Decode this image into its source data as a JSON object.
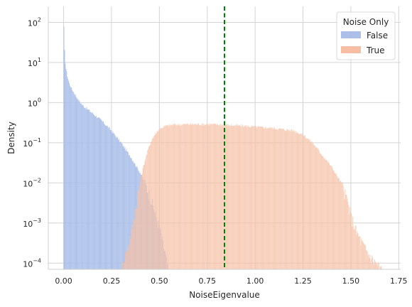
{
  "chart_data": {
    "type": "histogram",
    "xlabel": "NoiseEigenvalue",
    "ylabel": "Density",
    "yscale": "log",
    "xlim": [
      -0.08,
      1.76
    ],
    "ylim": [
      7e-05,
      250
    ],
    "x_ticks": [
      0.0,
      0.25,
      0.5,
      0.75,
      1.0,
      1.25,
      1.5,
      1.75
    ],
    "x_tick_labels": [
      "0.00",
      "0.25",
      "0.50",
      "0.75",
      "1.00",
      "1.25",
      "1.50",
      "1.75"
    ],
    "y_ticks": [
      0.0001,
      0.001,
      0.01,
      0.1,
      1,
      10,
      100
    ],
    "y_tick_labels": [
      {
        "base": "10",
        "exp": "−4"
      },
      {
        "base": "10",
        "exp": "−3"
      },
      {
        "base": "10",
        "exp": "−2"
      },
      {
        "base": "10",
        "exp": "−1"
      },
      {
        "base": "10",
        "exp": "0"
      },
      {
        "base": "10",
        "exp": "1"
      },
      {
        "base": "10",
        "exp": "2"
      }
    ],
    "grid": true,
    "vline": {
      "x": 0.84,
      "color": "#008000",
      "style": "dashed"
    },
    "legend": {
      "title": "Noise Only",
      "placement": "top-right",
      "entries": [
        {
          "label": "False",
          "color": "#8fa9e0"
        },
        {
          "label": "True",
          "color": "#f5a886"
        }
      ]
    },
    "series": [
      {
        "name": "False",
        "color": "#aabfe9",
        "curve": [
          [
            0.0,
            150
          ],
          [
            0.005,
            20
          ],
          [
            0.01,
            8
          ],
          [
            0.02,
            4.5
          ],
          [
            0.03,
            3.0
          ],
          [
            0.04,
            2.3
          ],
          [
            0.05,
            1.9
          ],
          [
            0.075,
            1.2
          ],
          [
            0.1,
            0.85
          ],
          [
            0.15,
            0.55
          ],
          [
            0.2,
            0.35
          ],
          [
            0.25,
            0.2
          ],
          [
            0.3,
            0.1
          ],
          [
            0.35,
            0.045
          ],
          [
            0.4,
            0.018
          ],
          [
            0.45,
            0.005
          ],
          [
            0.5,
            0.0008
          ],
          [
            0.53,
            0.00018
          ],
          [
            0.545,
            7e-05
          ]
        ]
      },
      {
        "name": "True",
        "color": "#f6c2a8",
        "curve": [
          [
            0.3,
            7e-05
          ],
          [
            0.33,
            0.0002
          ],
          [
            0.36,
            0.0008
          ],
          [
            0.38,
            0.003
          ],
          [
            0.4,
            0.011
          ],
          [
            0.42,
            0.03
          ],
          [
            0.44,
            0.065
          ],
          [
            0.46,
            0.12
          ],
          [
            0.48,
            0.17
          ],
          [
            0.5,
            0.22
          ],
          [
            0.53,
            0.26
          ],
          [
            0.57,
            0.28
          ],
          [
            0.65,
            0.29
          ],
          [
            0.75,
            0.29
          ],
          [
            0.85,
            0.28
          ],
          [
            1.0,
            0.25
          ],
          [
            1.1,
            0.23
          ],
          [
            1.2,
            0.2
          ],
          [
            1.25,
            0.16
          ],
          [
            1.3,
            0.1
          ],
          [
            1.35,
            0.05
          ],
          [
            1.4,
            0.025
          ],
          [
            1.45,
            0.01
          ],
          [
            1.48,
            0.004
          ],
          [
            1.5,
            0.0015
          ],
          [
            1.53,
            0.0006
          ],
          [
            1.57,
            0.00025
          ],
          [
            1.6,
            0.00015
          ],
          [
            1.64,
            9e-05
          ],
          [
            1.66,
            7e-05
          ]
        ]
      }
    ]
  }
}
